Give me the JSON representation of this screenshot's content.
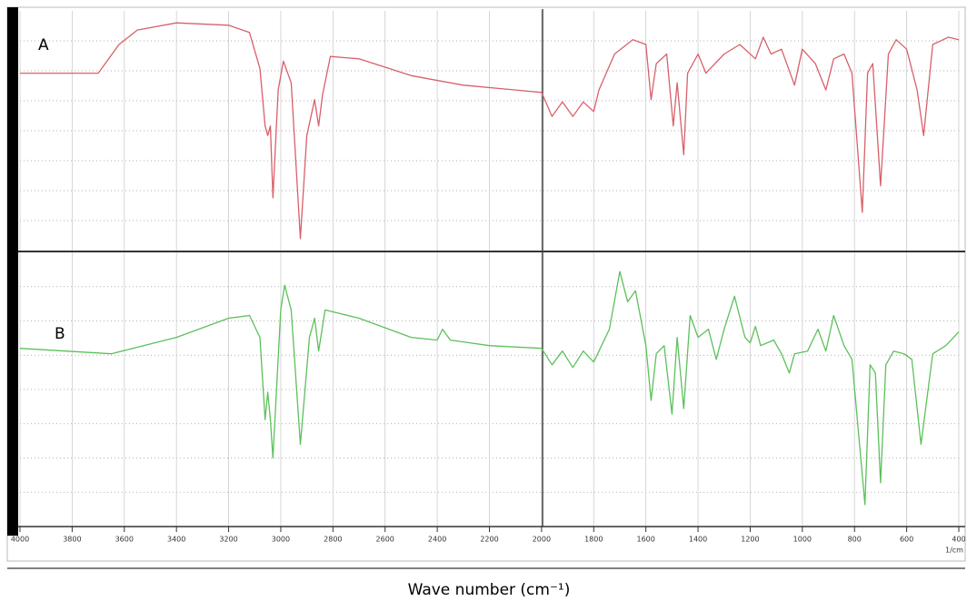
{
  "chart_data": [
    {
      "type": "line",
      "panel_label": "A",
      "xlim": [
        4000,
        400
      ],
      "ylim": [
        0,
        100
      ],
      "yticks": [
        12.5,
        25,
        37.5,
        50,
        62.5,
        75,
        87.5
      ],
      "grid": true,
      "x": [
        4000,
        3700,
        3620,
        3550,
        3400,
        3200,
        3120,
        3080,
        3060,
        3050,
        3040,
        3030,
        3010,
        2990,
        2960,
        2925,
        2900,
        2870,
        2855,
        2840,
        2810,
        2700,
        2500,
        2300,
        2100,
        2000,
        1960,
        1920,
        1880,
        1840,
        1800,
        1780,
        1720,
        1650,
        1600,
        1580,
        1560,
        1520,
        1495,
        1480,
        1455,
        1440,
        1400,
        1370,
        1300,
        1240,
        1180,
        1150,
        1120,
        1080,
        1030,
        1000,
        950,
        910,
        880,
        840,
        810,
        770,
        750,
        730,
        700,
        670,
        640,
        600,
        560,
        535,
        500,
        460,
        440,
        400
      ],
      "series": [
        {
          "color": "#d8606a",
          "values": [
            74,
            74,
            86,
            92,
            95,
            94,
            91,
            76,
            52,
            48,
            52,
            22,
            67,
            79,
            70,
            5,
            48,
            63,
            52,
            65,
            81,
            80,
            73,
            69,
            67,
            66,
            56,
            62,
            56,
            62,
            58,
            67,
            82,
            88,
            86,
            63,
            78,
            82,
            52,
            70,
            40,
            74,
            82,
            74,
            82,
            86,
            80,
            89,
            82,
            84,
            69,
            84,
            78,
            67,
            80,
            82,
            74,
            16,
            74,
            78,
            27,
            82,
            88,
            84,
            67,
            48,
            86,
            88,
            89,
            88
          ]
        }
      ]
    },
    {
      "type": "line",
      "panel_label": "B",
      "xlim": [
        4000,
        400
      ],
      "ylim": [
        0,
        100
      ],
      "yticks": [
        12.5,
        25,
        37.5,
        50,
        62.5,
        75,
        87.5
      ],
      "grid": true,
      "xticks": [
        4000,
        3800,
        3600,
        3400,
        3200,
        3000,
        2800,
        2600,
        2400,
        2200,
        2000,
        1800,
        1600,
        1400,
        1200,
        1000,
        800,
        600,
        400
      ],
      "x_unit": "1/cm",
      "xlabel": "Wave number (cm⁻¹)",
      "x": [
        4000,
        3650,
        3400,
        3200,
        3120,
        3080,
        3060,
        3050,
        3040,
        3030,
        3000,
        2985,
        2960,
        2925,
        2890,
        2870,
        2855,
        2830,
        2700,
        2500,
        2400,
        2380,
        2350,
        2200,
        2000,
        1960,
        1920,
        1880,
        1840,
        1800,
        1740,
        1700,
        1670,
        1640,
        1600,
        1580,
        1560,
        1530,
        1500,
        1480,
        1455,
        1430,
        1400,
        1360,
        1330,
        1300,
        1260,
        1220,
        1200,
        1180,
        1160,
        1110,
        1080,
        1050,
        1030,
        980,
        940,
        910,
        880,
        840,
        810,
        760,
        740,
        720,
        700,
        680,
        650,
        610,
        580,
        545,
        500,
        450,
        400
      ],
      "series": [
        {
          "color": "#5cc05c",
          "values": [
            65,
            63,
            69,
            76,
            77,
            69,
            39,
            49,
            39,
            25,
            79,
            88,
            79,
            30,
            69,
            76,
            64,
            79,
            76,
            69,
            68,
            72,
            68,
            66,
            65,
            59,
            64,
            58,
            64,
            60,
            72,
            93,
            82,
            86,
            66,
            46,
            63,
            66,
            41,
            69,
            43,
            77,
            69,
            72,
            61,
            72,
            84,
            69,
            67,
            73,
            66,
            68,
            63,
            56,
            63,
            64,
            72,
            64,
            77,
            66,
            61,
            8,
            59,
            56,
            16,
            59,
            64,
            63,
            61,
            30,
            63,
            66,
            71
          ]
        }
      ]
    }
  ]
}
